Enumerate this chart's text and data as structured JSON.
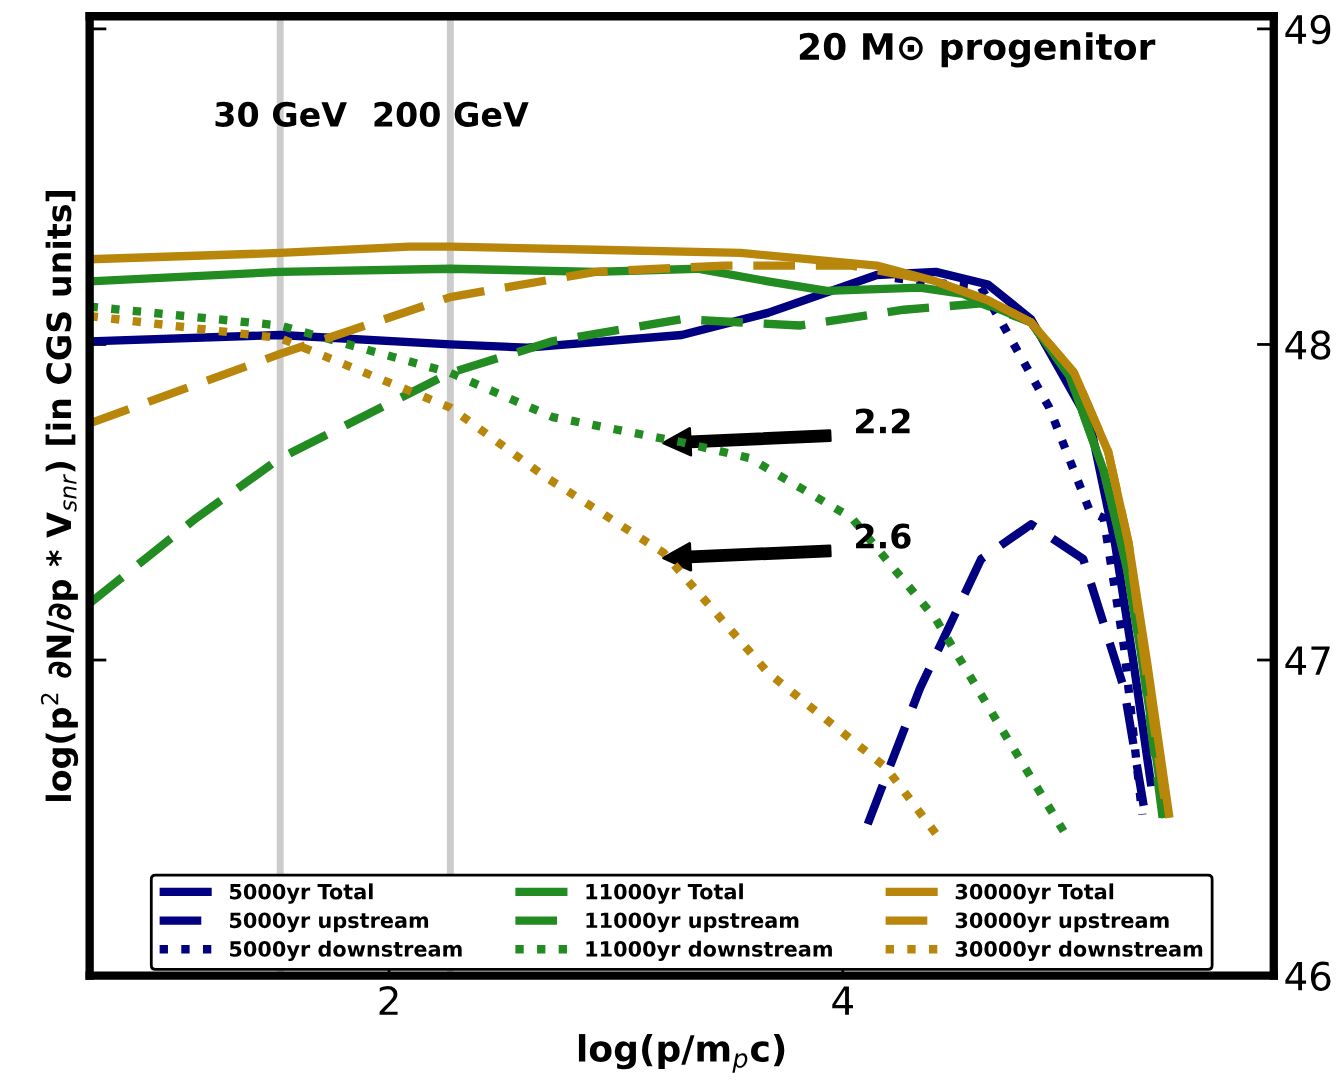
{
  "chart_data": {
    "type": "line",
    "xlabel": "log(p/m$_{p}$c)",
    "ylabel": "log(p$^{2}$ ∂N/∂p * V$_{snr}$) [in CGS units]",
    "xlim": [
      0.68,
      5.9
    ],
    "ylim": [
      46,
      49.04
    ],
    "xticks": [
      2,
      4
    ],
    "yticks": [
      46,
      47,
      48,
      49
    ],
    "grid": false,
    "legend": "bottom",
    "marker": "none",
    "ref_lines": [
      {
        "axis": "x",
        "value": 1.52,
        "label": "30 GeV",
        "color": "#cccccc"
      },
      {
        "axis": "x",
        "value": 2.27,
        "label": "200 GeV",
        "color": "#cccccc"
      }
    ],
    "annotations": [
      "20 M⊙ progenitor",
      "2.2",
      "2.6"
    ],
    "series": [
      {
        "name": "5000yr Total",
        "color": "#000080",
        "line_style": "solid",
        "x": [
          0.68,
          1.52,
          2.27,
          2.61,
          3.29,
          3.67,
          4.15,
          4.41,
          4.64,
          4.83,
          5.09,
          5.2,
          5.28,
          5.36
        ],
        "values": [
          48.01,
          48.03,
          48.0,
          47.99,
          48.03,
          48.1,
          48.22,
          48.23,
          48.19,
          48.08,
          47.75,
          47.37,
          47.0,
          46.6
        ]
      },
      {
        "name": "5000yr upstream",
        "color": "#000080",
        "line_style": "dashed",
        "x": [
          4.11,
          4.34,
          4.61,
          4.83,
          5.06,
          5.24,
          5.34
        ],
        "values": [
          46.48,
          46.91,
          47.32,
          47.43,
          47.32,
          46.91,
          46.48
        ]
      },
      {
        "name": "5000yr downstream",
        "color": "#000080",
        "line_style": "dotted",
        "x": [
          4.23,
          4.61,
          4.7,
          4.91,
          5.09,
          5.15,
          5.24,
          5.32
        ],
        "values": [
          48.21,
          48.18,
          48.07,
          47.8,
          47.47,
          47.45,
          47.04,
          46.51
        ]
      },
      {
        "name": "11000yr Total",
        "color": "#228b22",
        "line_style": "solid",
        "x": [
          0.68,
          1.52,
          2.27,
          2.91,
          3.36,
          3.67,
          3.93,
          4.34,
          4.53,
          4.83,
          5.0,
          5.15,
          5.25,
          5.32,
          5.42
        ],
        "values": [
          48.2,
          48.23,
          48.24,
          48.23,
          48.24,
          48.2,
          48.17,
          48.18,
          48.16,
          48.07,
          47.9,
          47.6,
          47.3,
          47.0,
          46.5
        ]
      },
      {
        "name": "11000yr upstream",
        "color": "#228b22",
        "line_style": "dashed",
        "x": [
          0.68,
          1.15,
          1.52,
          2.27,
          2.72,
          3.29,
          3.81,
          4.27,
          4.61,
          4.83,
          5.0,
          5.15,
          5.25,
          5.32,
          5.41
        ],
        "values": [
          47.18,
          47.45,
          47.64,
          47.91,
          48.01,
          48.08,
          48.06,
          48.11,
          48.13,
          48.07,
          47.9,
          47.6,
          47.3,
          47.0,
          46.5
        ]
      },
      {
        "name": "11000yr downstream",
        "color": "#228b22",
        "line_style": "dotted",
        "x": [
          0.68,
          1.52,
          2.27,
          2.72,
          3.29,
          3.59,
          4.04,
          4.41,
          4.71,
          4.98
        ],
        "values": [
          48.12,
          48.06,
          47.91,
          47.77,
          47.69,
          47.64,
          47.45,
          47.13,
          46.77,
          46.45
        ]
      },
      {
        "name": "30000yr Total",
        "color": "#b8860b",
        "line_style": "solid",
        "x": [
          0.68,
          1.52,
          2.09,
          2.27,
          2.91,
          3.55,
          4.15,
          4.41,
          4.64,
          4.83,
          5.02,
          5.17,
          5.26,
          5.34,
          5.44
        ],
        "values": [
          48.27,
          48.29,
          48.31,
          48.31,
          48.3,
          48.29,
          48.25,
          48.2,
          48.14,
          48.07,
          47.91,
          47.66,
          47.37,
          47.0,
          46.5
        ]
      },
      {
        "name": "30000yr upstream",
        "color": "#b8860b",
        "line_style": "dashed",
        "x": [
          0.68,
          1.52,
          2.27,
          2.91,
          3.48,
          4.04,
          4.41,
          4.64,
          4.83,
          5.02,
          5.17,
          5.26,
          5.33,
          5.43
        ],
        "values": [
          47.75,
          47.97,
          48.15,
          48.23,
          48.25,
          48.25,
          48.2,
          48.14,
          48.07,
          47.91,
          47.66,
          47.37,
          47.0,
          46.5
        ]
      },
      {
        "name": "30000yr downstream",
        "color": "#b8860b",
        "line_style": "dotted",
        "x": [
          0.68,
          1.52,
          2.27,
          2.69,
          3.21,
          3.67,
          4.19,
          4.41
        ],
        "values": [
          48.09,
          48.02,
          47.8,
          47.58,
          47.34,
          46.96,
          46.66,
          46.45
        ]
      }
    ]
  }
}
